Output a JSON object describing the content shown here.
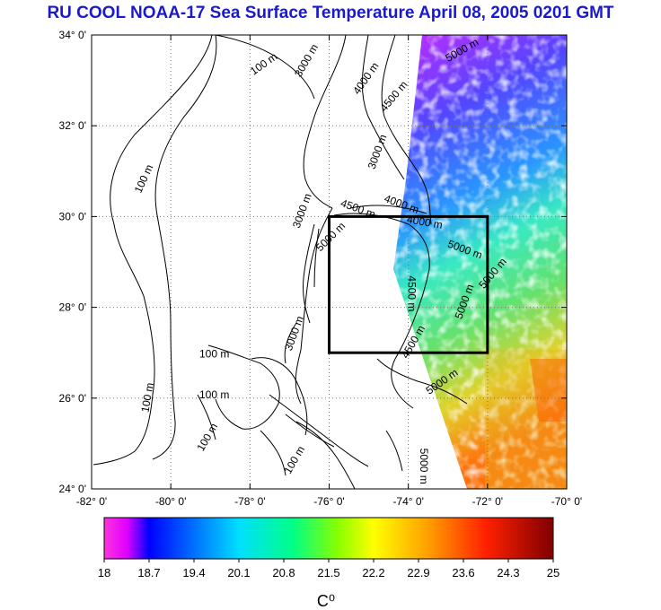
{
  "title": "RU COOL  NOAA-17 Sea Surface Temperature April 08, 2005 0201 GMT",
  "map": {
    "lat_ticks": [
      "34° 0'",
      "32° 0'",
      "30° 0'",
      "28° 0'",
      "26° 0'",
      "24° 0'"
    ],
    "lon_ticks": [
      "-82° 0'",
      "-80° 0'",
      "-78° 0'",
      "-76° 0'",
      "-74° 0'",
      "-72° 0'",
      "-70° 0'"
    ],
    "lat_range": [
      24,
      34
    ],
    "lon_range": [
      -82,
      -70
    ],
    "grid": true,
    "study_box": {
      "lon": [
        -76,
        -72
      ],
      "lat": [
        27,
        30
      ]
    },
    "contour_labels": [
      {
        "text": "100 m",
        "lon": -77.6,
        "lat": 33.3,
        "rot": -35
      },
      {
        "text": "100 m",
        "lon": -80.6,
        "lat": 30.8,
        "rot": -65
      },
      {
        "text": "100 m",
        "lon": -80.5,
        "lat": 26.0,
        "rot": -80
      },
      {
        "text": "100 m",
        "lon": -78.9,
        "lat": 26.9,
        "rot": 0
      },
      {
        "text": "100 m",
        "lon": -78.9,
        "lat": 26.0,
        "rot": 0
      },
      {
        "text": "100 m",
        "lon": -79.0,
        "lat": 25.1,
        "rot": -60
      },
      {
        "text": "100 m",
        "lon": -76.8,
        "lat": 24.6,
        "rot": -60
      },
      {
        "text": "3000 m",
        "lon": -76.5,
        "lat": 33.4,
        "rot": -60
      },
      {
        "text": "3000 m",
        "lon": -76.6,
        "lat": 30.1,
        "rot": -70
      },
      {
        "text": "3000 m",
        "lon": -76.8,
        "lat": 27.4,
        "rot": -70
      },
      {
        "text": "3000 m",
        "lon": -74.7,
        "lat": 31.4,
        "rot": -70
      },
      {
        "text": "4000 m",
        "lon": -75.0,
        "lat": 33.0,
        "rot": -55
      },
      {
        "text": "4000 m",
        "lon": -74.2,
        "lat": 30.2,
        "rot": 20
      },
      {
        "text": "4000 m",
        "lon": -73.6,
        "lat": 29.8,
        "rot": 10
      },
      {
        "text": "4500 m",
        "lon": -74.3,
        "lat": 32.6,
        "rot": -50
      },
      {
        "text": "4500 m",
        "lon": -75.3,
        "lat": 30.1,
        "rot": 20
      },
      {
        "text": "4500 m",
        "lon": -74.0,
        "lat": 28.3,
        "rot": 90
      },
      {
        "text": "4500 m",
        "lon": -73.8,
        "lat": 27.2,
        "rot": -60
      },
      {
        "text": "5000 m",
        "lon": -72.6,
        "lat": 33.6,
        "rot": -30
      },
      {
        "text": "5000 m",
        "lon": -75.9,
        "lat": 29.5,
        "rot": -45
      },
      {
        "text": "5000 m",
        "lon": -73.1,
        "lat": 26.3,
        "rot": -35
      },
      {
        "text": "5000 m",
        "lon": -72.5,
        "lat": 28.1,
        "rot": -70
      },
      {
        "text": "5000 m",
        "lon": -71.8,
        "lat": 28.7,
        "rot": -50
      },
      {
        "text": "5000 m",
        "lon": -73.7,
        "lat": 24.5,
        "rot": 90
      },
      {
        "text": "5000 m",
        "lon": -72.6,
        "lat": 29.2,
        "rot": 20
      }
    ]
  },
  "colorbar": {
    "min": 18,
    "max": 25,
    "tick_labels": [
      "18",
      "18.7",
      "19.4",
      "20.1",
      "20.8",
      "21.5",
      "22.2",
      "22.9",
      "23.6",
      "24.3",
      "25"
    ],
    "unit": "C⁰",
    "colors": [
      "#ff33dd",
      "#d100ff",
      "#0000ff",
      "#0088ff",
      "#00ffff",
      "#33ff66",
      "#aaff00",
      "#ffff00",
      "#ffaa00",
      "#ff2a00",
      "#7a0000"
    ]
  }
}
